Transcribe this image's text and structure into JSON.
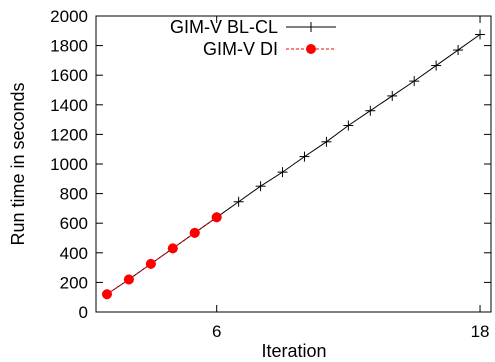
{
  "chart_data": {
    "type": "line",
    "xlabel": "Iteration",
    "ylabel": "Run time in seconds",
    "xlim": [
      0.5,
      18.5
    ],
    "ylim": [
      0,
      2000
    ],
    "xticks": [
      6,
      18
    ],
    "yticks": [
      0,
      200,
      400,
      600,
      800,
      1000,
      1200,
      1400,
      1600,
      1800,
      2000
    ],
    "grid": false,
    "legend_position": "top-left",
    "series": [
      {
        "name": "GIM-V BL-CL",
        "color": "#000000",
        "line_style": "solid",
        "marker": "plus",
        "x": [
          1,
          2,
          3,
          4,
          5,
          6,
          7,
          8,
          9,
          10,
          11,
          12,
          13,
          14,
          15,
          16,
          17,
          18
        ],
        "y": [
          120,
          220,
          325,
          430,
          535,
          640,
          745,
          850,
          945,
          1050,
          1150,
          1260,
          1360,
          1460,
          1560,
          1665,
          1770,
          1875
        ]
      },
      {
        "name": "GIM-V DI",
        "color": "#ff0000",
        "line_style": "dashed",
        "marker": "circle",
        "x": [
          1,
          2,
          3,
          4,
          5,
          6
        ],
        "y": [
          120,
          220,
          325,
          430,
          535,
          640
        ]
      }
    ]
  }
}
